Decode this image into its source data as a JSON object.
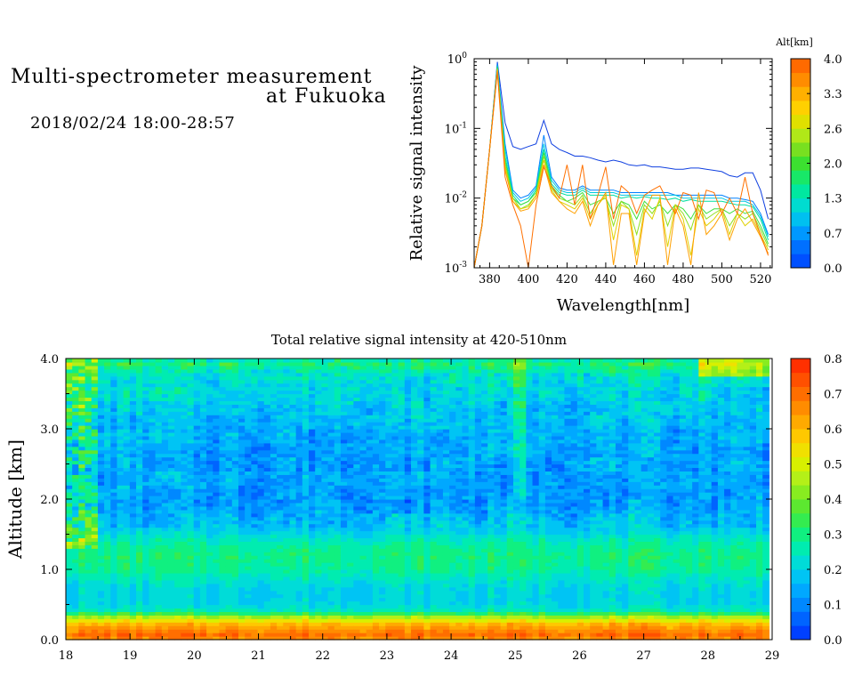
{
  "header": {
    "title_line1": "Multi-spectrometer measurement",
    "title_line2": "at Fukuoka",
    "subtitle": "2018/02/24 18:00-28:57"
  },
  "chart_data": [
    {
      "type": "line",
      "ylabel": "Relative signal intensity",
      "xlabel": "Wavelength[nm]",
      "x_ticks": [
        380,
        400,
        420,
        440,
        460,
        480,
        500,
        520
      ],
      "xlim": [
        372,
        526
      ],
      "y_scale": "log",
      "ylim": [
        0.001,
        1
      ],
      "y_tick_labels": [
        "10^-3",
        "10^-2",
        "10^-1",
        "10^0"
      ],
      "legend_title": "Alt[km]",
      "legend_ticks": [
        "4.0",
        "3.3",
        "2.6",
        "2.0",
        "1.3",
        "0.7",
        "0.0"
      ],
      "legend_placement": "right colorbar",
      "colorbar_colors": [
        "#0050ff",
        "#0070ff",
        "#0098ff",
        "#00c0f0",
        "#00dcd0",
        "#00e8a0",
        "#18e868",
        "#3ce030",
        "#78e020",
        "#b0e818",
        "#e0e000",
        "#ffd000",
        "#ffb000",
        "#ff8c00",
        "#ff6a00"
      ],
      "x": [
        372,
        376,
        380,
        384,
        388,
        392,
        396,
        400,
        404,
        408,
        412,
        416,
        420,
        424,
        428,
        432,
        436,
        440,
        444,
        448,
        452,
        456,
        460,
        464,
        468,
        472,
        476,
        480,
        484,
        488,
        492,
        496,
        500,
        504,
        508,
        512,
        516,
        520,
        524
      ],
      "series": [
        {
          "alt": 0.2,
          "color": "#1040e0",
          "values": [
            0.0008,
            0.004,
            0.05,
            0.9,
            0.12,
            0.055,
            0.05,
            0.055,
            0.06,
            0.13,
            0.06,
            0.05,
            0.045,
            0.04,
            0.04,
            0.038,
            0.035,
            0.033,
            0.035,
            0.033,
            0.03,
            0.029,
            0.03,
            0.028,
            0.028,
            0.027,
            0.026,
            0.026,
            0.027,
            0.027,
            0.026,
            0.025,
            0.024,
            0.021,
            0.02,
            0.023,
            0.023,
            0.013,
            0.005
          ]
        },
        {
          "alt": 0.5,
          "color": "#0080ff",
          "values": [
            0.0008,
            0.004,
            0.05,
            0.85,
            0.06,
            0.013,
            0.01,
            0.011,
            0.015,
            0.08,
            0.02,
            0.014,
            0.013,
            0.013,
            0.015,
            0.013,
            0.013,
            0.013,
            0.013,
            0.012,
            0.012,
            0.012,
            0.012,
            0.012,
            0.012,
            0.012,
            0.011,
            0.011,
            0.011,
            0.011,
            0.011,
            0.011,
            0.011,
            0.01,
            0.01,
            0.0095,
            0.009,
            0.006,
            0.003
          ]
        },
        {
          "alt": 0.9,
          "color": "#00c8e0",
          "values": [
            0.0008,
            0.004,
            0.05,
            0.8,
            0.05,
            0.012,
            0.009,
            0.01,
            0.014,
            0.06,
            0.018,
            0.013,
            0.012,
            0.012,
            0.014,
            0.012,
            0.012,
            0.012,
            0.012,
            0.011,
            0.011,
            0.011,
            0.011,
            0.011,
            0.011,
            0.011,
            0.011,
            0.01,
            0.01,
            0.01,
            0.01,
            0.01,
            0.01,
            0.009,
            0.009,
            0.009,
            0.008,
            0.0055,
            0.0028
          ]
        },
        {
          "alt": 1.3,
          "color": "#00e0a0",
          "values": [
            0.0008,
            0.004,
            0.05,
            0.78,
            0.04,
            0.011,
            0.008,
            0.009,
            0.013,
            0.05,
            0.016,
            0.012,
            0.011,
            0.011,
            0.013,
            0.011,
            0.011,
            0.011,
            0.011,
            0.01,
            0.0105,
            0.01,
            0.0105,
            0.01,
            0.01,
            0.0095,
            0.01,
            0.009,
            0.0095,
            0.009,
            0.009,
            0.009,
            0.009,
            0.0085,
            0.008,
            0.008,
            0.0075,
            0.005,
            0.0025
          ]
        },
        {
          "alt": 1.8,
          "color": "#40e040",
          "values": [
            0.0008,
            0.004,
            0.05,
            0.75,
            0.035,
            0.01,
            0.008,
            0.009,
            0.012,
            0.045,
            0.015,
            0.011,
            0.009,
            0.01,
            0.012,
            0.008,
            0.009,
            0.01,
            0.006,
            0.009,
            0.008,
            0.005,
            0.009,
            0.007,
            0.008,
            0.006,
            0.008,
            0.007,
            0.005,
            0.008,
            0.006,
            0.007,
            0.007,
            0.006,
            0.007,
            0.006,
            0.0065,
            0.004,
            0.0022
          ]
        },
        {
          "alt": 2.4,
          "color": "#90e020",
          "values": [
            0.0008,
            0.004,
            0.05,
            0.72,
            0.03,
            0.01,
            0.007,
            0.008,
            0.011,
            0.04,
            0.014,
            0.01,
            0.009,
            0.008,
            0.011,
            0.006,
            0.009,
            0.01,
            0.004,
            0.009,
            0.007,
            0.003,
            0.008,
            0.006,
            0.009,
            0.004,
            0.008,
            0.006,
            0.0035,
            0.008,
            0.005,
            0.006,
            0.007,
            0.004,
            0.006,
            0.005,
            0.006,
            0.0035,
            0.002
          ]
        },
        {
          "alt": 3.0,
          "color": "#e0d000",
          "values": [
            0.0008,
            0.004,
            0.05,
            0.7,
            0.028,
            0.009,
            0.007,
            0.0075,
            0.011,
            0.035,
            0.013,
            0.009,
            0.008,
            0.007,
            0.01,
            0.005,
            0.008,
            0.011,
            0.0025,
            0.008,
            0.007,
            0.0015,
            0.007,
            0.005,
            0.01,
            0.002,
            0.008,
            0.005,
            0.0015,
            0.007,
            0.004,
            0.005,
            0.007,
            0.003,
            0.006,
            0.004,
            0.005,
            0.003,
            0.0018
          ]
        },
        {
          "alt": 3.5,
          "color": "#ffa000",
          "values": [
            0.0008,
            0.004,
            0.05,
            0.68,
            0.025,
            0.009,
            0.0065,
            0.007,
            0.01,
            0.03,
            0.012,
            0.009,
            0.007,
            0.006,
            0.009,
            0.004,
            0.008,
            0.012,
            0.0011,
            0.006,
            0.006,
            0.0011,
            0.006,
            0.011,
            0.011,
            0.0011,
            0.007,
            0.004,
            0.0011,
            0.012,
            0.003,
            0.004,
            0.006,
            0.0025,
            0.005,
            0.007,
            0.0045,
            0.0028,
            0.0016
          ]
        },
        {
          "alt": 3.9,
          "color": "#ff7000",
          "values": [
            0.0008,
            0.004,
            0.05,
            0.65,
            0.02,
            0.008,
            0.004,
            0.001,
            0.008,
            0.028,
            0.015,
            0.01,
            0.03,
            0.008,
            0.03,
            0.005,
            0.011,
            0.028,
            0.005,
            0.015,
            0.012,
            0.006,
            0.011,
            0.013,
            0.015,
            0.009,
            0.006,
            0.012,
            0.011,
            0.005,
            0.013,
            0.012,
            0.006,
            0.01,
            0.006,
            0.02,
            0.006,
            0.003,
            0.0015
          ]
        }
      ]
    },
    {
      "type": "heatmap",
      "title": "Total relative signal intensity at 420-510nm",
      "ylabel": "Altitude [km]",
      "xlabel": "",
      "x_ticks": [
        18,
        19,
        20,
        21,
        22,
        23,
        24,
        25,
        26,
        27,
        28,
        29
      ],
      "xlim": [
        18,
        29
      ],
      "y_ticks": [
        "0.0",
        "1.0",
        "2.0",
        "3.0",
        "4.0"
      ],
      "ylim": [
        0,
        4
      ],
      "data_xlim": [
        18.0,
        28.95
      ],
      "colorbar_ticks": [
        "0.8",
        "0.7",
        "0.6",
        "0.5",
        "0.4",
        "0.3",
        "0.2",
        "0.1",
        "0.0"
      ],
      "colorbar_range": [
        0,
        0.8
      ],
      "colorbar_colors": [
        "#0040ff",
        "#0064ff",
        "#0088ff",
        "#00a8ff",
        "#00c4f4",
        "#00dcd8",
        "#00ecb0",
        "#10f080",
        "#34ec50",
        "#5ce830",
        "#88ec20",
        "#b4f018",
        "#d8f000",
        "#f0e000",
        "#ffc800",
        "#ffaa00",
        "#ff8c00",
        "#ff6e00",
        "#ff5000",
        "#ff3000"
      ],
      "profile_altitude_km": [
        0.0,
        0.1,
        0.15,
        0.2,
        0.25,
        0.3,
        0.35,
        0.4,
        0.5,
        0.6,
        0.8,
        1.0,
        1.2,
        1.4,
        1.6,
        2.0,
        2.5,
        3.0,
        3.5,
        3.8,
        3.95,
        4.0
      ],
      "profile_intensity": [
        0.65,
        0.72,
        0.62,
        0.66,
        0.55,
        0.5,
        0.4,
        0.26,
        0.21,
        0.2,
        0.22,
        0.28,
        0.3,
        0.26,
        0.18,
        0.12,
        0.14,
        0.16,
        0.2,
        0.24,
        0.32,
        0.2
      ]
    }
  ]
}
